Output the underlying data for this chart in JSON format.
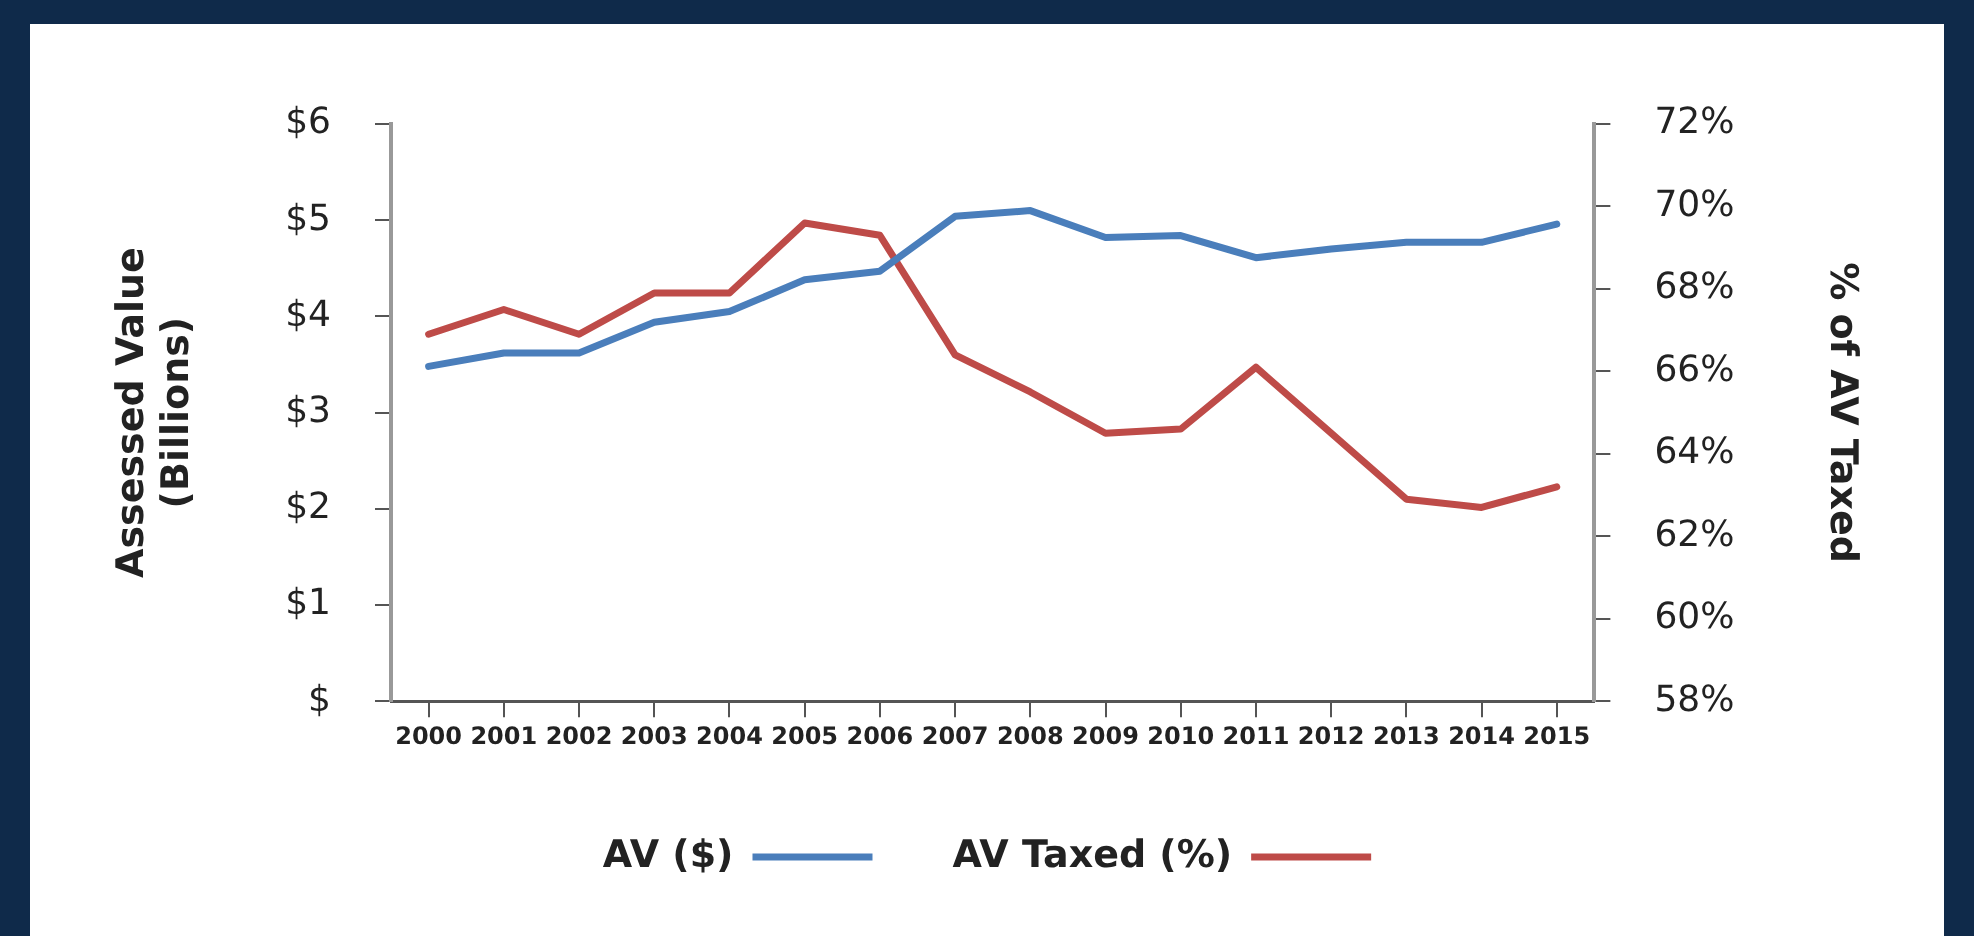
{
  "chart_data": {
    "type": "line",
    "ylabel": "Assessed Value\n(Billions)",
    "y2label": "% of AV Taxed",
    "categories": [
      "2000",
      "2001",
      "2002",
      "2003",
      "2004",
      "2005",
      "2006",
      "2007",
      "2008",
      "2009",
      "2010",
      "2011",
      "2012",
      "2013",
      "2014",
      "2015"
    ],
    "series": [
      {
        "name": "AV ($)",
        "color": "#4a7ebb",
        "values": [
          3.48,
          3.62,
          3.62,
          3.94,
          4.05,
          4.38,
          4.47,
          5.04,
          5.1,
          4.82,
          4.84,
          4.61,
          4.7,
          4.77,
          4.77,
          4.96
        ]
      },
      {
        "name": "AV Taxed (%)",
        "color": "#be4b48",
        "axis": "y2",
        "values": [
          66.9,
          67.5,
          66.9,
          67.9,
          67.9,
          69.6,
          69.3,
          66.4,
          65.5,
          64.5,
          64.6,
          66.1,
          64.5,
          62.9,
          62.7,
          63.2
        ]
      }
    ],
    "ylim": [
      0,
      6
    ],
    "yticks": [
      {
        "value": 0,
        "label": "$"
      },
      {
        "value": 1,
        "label": "$1"
      },
      {
        "value": 2,
        "label": "$2"
      },
      {
        "value": 3,
        "label": "$3"
      },
      {
        "value": 4,
        "label": "$4"
      },
      {
        "value": 5,
        "label": "$5"
      },
      {
        "value": 6,
        "label": "$6"
      }
    ],
    "y2lim": [
      58,
      72
    ],
    "y2ticks": [
      {
        "value": 58,
        "label": "58%"
      },
      {
        "value": 60,
        "label": "60%"
      },
      {
        "value": 62,
        "label": "62%"
      },
      {
        "value": 64,
        "label": "64%"
      },
      {
        "value": 66,
        "label": "66%"
      },
      {
        "value": 68,
        "label": "68%"
      },
      {
        "value": 70,
        "label": "70%"
      },
      {
        "value": 72,
        "label": "72%"
      }
    ],
    "grid": false,
    "legend": "bottom",
    "marker": "none",
    "line_style": "solid"
  }
}
